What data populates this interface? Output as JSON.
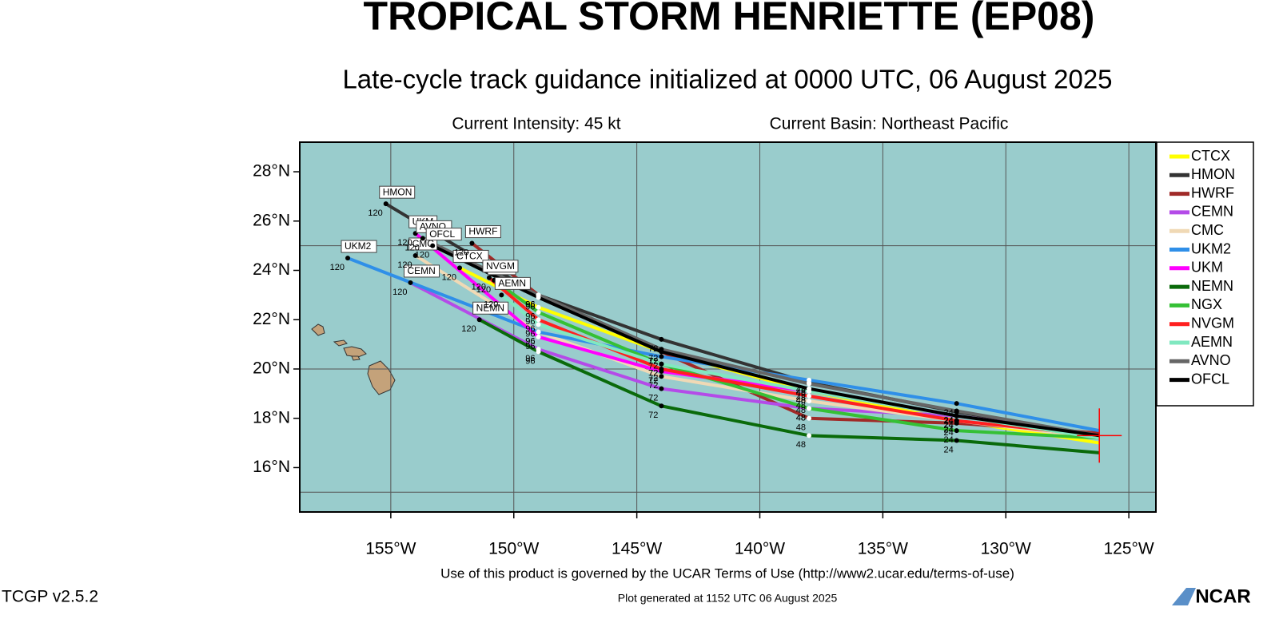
{
  "chart_data": {
    "type": "line",
    "title": "TROPICAL STORM HENRIETTE (EP08)",
    "subtitle": "Late-cycle track guidance initialized at 0000 UTC, 06 August 2025",
    "intensity": "Current Intensity: 45 kt",
    "basin": "Current Basin: Northeast Pacific",
    "terms": "Use of this product is governed by the UCAR Terms of Use (http://www2.ucar.edu/terms-of-use)",
    "version": "TCGP v2.5.2",
    "generated": "Plot generated at 1152 UTC   06 August 2025",
    "logo": "NCAR",
    "xlim": [
      -158.7,
      -123.9
    ],
    "ylim": [
      14.2,
      29.2
    ],
    "xticks": [
      {
        "value": -155,
        "label": "155°W"
      },
      {
        "value": -150,
        "label": "150°W"
      },
      {
        "value": -145,
        "label": "145°W"
      },
      {
        "value": -140,
        "label": "140°W"
      },
      {
        "value": -135,
        "label": "135°W"
      },
      {
        "value": -130,
        "label": "130°W"
      },
      {
        "value": -125,
        "label": "125°W"
      }
    ],
    "yticks": [
      {
        "value": 16,
        "label": "16°N"
      },
      {
        "value": 18,
        "label": "18°N"
      },
      {
        "value": 20,
        "label": "20°N"
      },
      {
        "value": 22,
        "label": "22°N"
      },
      {
        "value": 24,
        "label": "24°N"
      },
      {
        "value": 26,
        "label": "26°N"
      },
      {
        "value": 28,
        "label": "28°N"
      }
    ],
    "ygrid": [
      15,
      20,
      25
    ],
    "grid": true,
    "legend": "right",
    "current_position": {
      "lon": -126.2,
      "lat": 17.3
    },
    "hours": [
      0,
      24,
      48,
      72,
      96,
      120
    ],
    "series": [
      {
        "name": "CTCX",
        "color": "#ffff00",
        "x": [
          -126.2,
          -132,
          -138,
          -144,
          -149,
          -152.2
        ],
        "values": [
          17.0,
          17.9,
          19.1,
          20.7,
          22.5,
          24.1
        ]
      },
      {
        "name": "HMON",
        "color": "#333333",
        "x": [
          -126.2,
          -132,
          -138,
          -144,
          -149,
          -155.2
        ],
        "values": [
          17.3,
          18.26,
          19.45,
          21.2,
          23.0,
          26.7
        ]
      },
      {
        "name": "HWRF",
        "color": "#a02a28",
        "x": [
          -126.2,
          -132,
          -138,
          -144,
          -149,
          -151.7
        ],
        "values": [
          17.4,
          17.8,
          18.0,
          20.7,
          23.0,
          25.1
        ]
      },
      {
        "name": "CEMN",
        "color": "#b44be8",
        "x": [
          -126.2,
          -132,
          -138,
          -144,
          -149,
          -154.2
        ],
        "values": [
          17.2,
          18.1,
          18.4,
          19.2,
          20.8,
          23.5
        ]
      },
      {
        "name": "CMC",
        "color": "#f0d9b5",
        "x": [
          -126.2,
          -132,
          -138,
          -144,
          -149,
          -154.0
        ],
        "values": [
          17.2,
          17.9,
          18.7,
          19.7,
          21.5,
          24.6
        ]
      },
      {
        "name": "UKM2",
        "color": "#2f8fe8",
        "x": [
          -126.2,
          -132,
          -138,
          -144,
          -149,
          -156.75
        ],
        "values": [
          17.5,
          18.6,
          19.55,
          20.5,
          21.5,
          24.5
        ]
      },
      {
        "name": "UKM",
        "color": "#ff00ff",
        "x": [
          -126.2,
          -132,
          -138,
          -144,
          -149,
          -154.0
        ],
        "values": [
          17.3,
          18.1,
          19.1,
          19.9,
          21.3,
          25.5
        ]
      },
      {
        "name": "NEMN",
        "color": "#0a6a0a",
        "x": [
          -126.2,
          -132,
          -138,
          -144,
          -149,
          -151.4
        ],
        "values": [
          16.6,
          17.1,
          17.3,
          18.5,
          20.7,
          22.0
        ]
      },
      {
        "name": "NGX",
        "color": "#35c035",
        "x": [
          -126.2,
          -132,
          -138,
          -144,
          -149,
          -150.8
        ],
        "values": [
          17.2,
          17.5,
          18.4,
          20.2,
          22.3,
          23.6
        ]
      },
      {
        "name": "NVGM",
        "color": "#ff2020",
        "x": [
          -126.2,
          -132,
          -138,
          -144,
          -149,
          -151.0
        ],
        "values": [
          17.3,
          17.9,
          18.9,
          20.0,
          22.0,
          23.7
        ]
      },
      {
        "name": "AEMN",
        "color": "#80e8c0",
        "x": [
          -126.2,
          -132,
          -138,
          -144,
          -149,
          -150.5
        ],
        "values": [
          17.2,
          18.1,
          19.1,
          20.2,
          21.8,
          23.0
        ]
      },
      {
        "name": "AVNO",
        "color": "#666666",
        "x": [
          -126.2,
          -132,
          -138,
          -144,
          -149,
          -153.7
        ],
        "values": [
          17.3,
          18.3,
          19.4,
          20.8,
          23.0,
          25.3
        ]
      },
      {
        "name": "OFCL",
        "color": "#000000",
        "x": [
          -126.2,
          -132,
          -138,
          -144,
          -149,
          -153.3
        ],
        "values": [
          17.3,
          18.1,
          19.2,
          20.7,
          22.9,
          25.0
        ]
      }
    ]
  }
}
